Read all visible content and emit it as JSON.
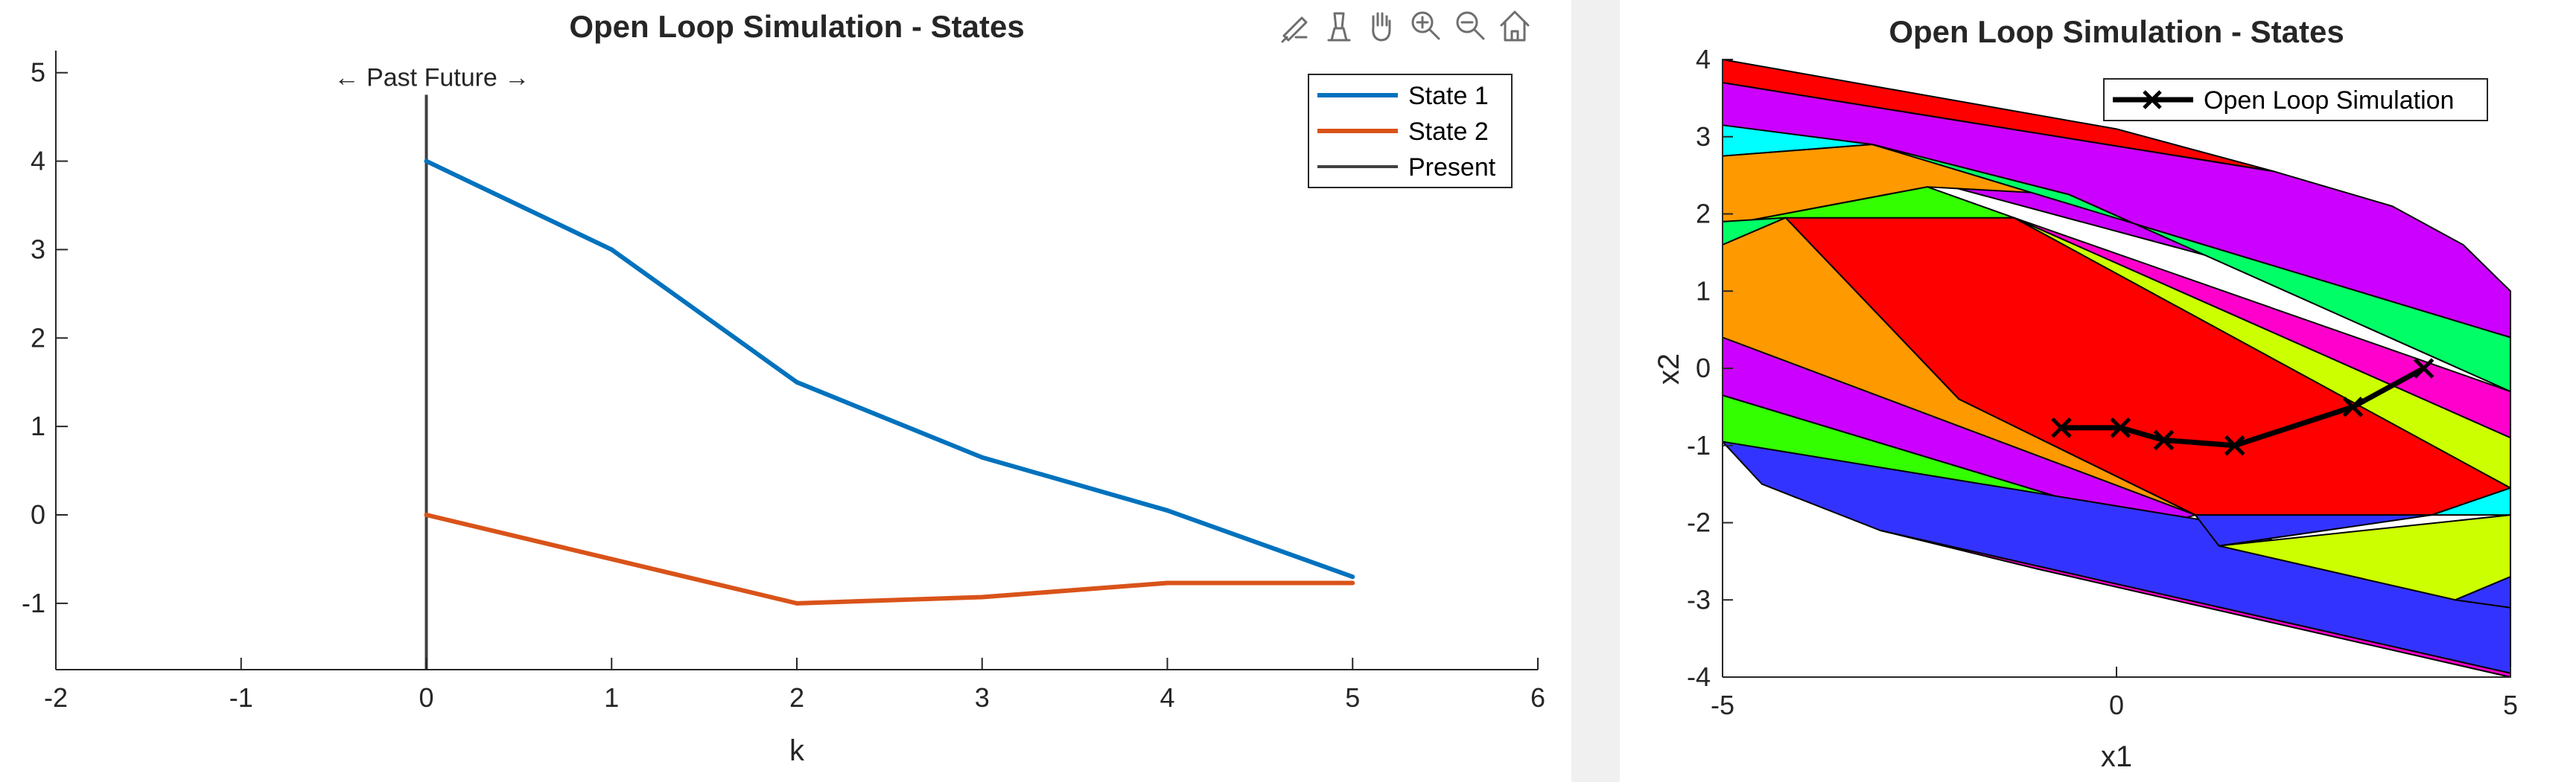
{
  "toolbar": {
    "icons": [
      "brush-icon",
      "datatip-icon",
      "pan-icon",
      "zoom-in-icon",
      "zoom-out-icon",
      "home-icon"
    ]
  },
  "chart_data": [
    {
      "type": "line",
      "title": "Open Loop Simulation - States",
      "xlabel": "k",
      "ylabel": "",
      "xlim": [
        -2,
        6
      ],
      "ylim": [
        -1.75,
        5.25
      ],
      "xticks": [
        "-2",
        "-1",
        "0",
        "1",
        "2",
        "3",
        "4",
        "5",
        "6"
      ],
      "yticks": [
        "-1",
        "0",
        "1",
        "2",
        "3",
        "4",
        "5"
      ],
      "x": [
        0,
        1,
        2,
        3,
        4,
        5
      ],
      "series": [
        {
          "name": "State 1",
          "color": "#0072BD",
          "values": [
            4,
            3,
            1.5,
            0.65,
            0.05,
            -0.7
          ]
        },
        {
          "name": "State 2",
          "color": "#D95319",
          "values": [
            0,
            -0.5,
            -1.0,
            -0.93,
            -0.77,
            -0.77
          ]
        }
      ],
      "present": {
        "name": "Present",
        "x": 0,
        "color": "#404040"
      },
      "annotation": "← Past Future →",
      "legend": "top-right",
      "grid": false
    },
    {
      "type": "line",
      "title": "Open Loop Simulation - States",
      "xlabel": "x1",
      "ylabel": "x2",
      "xlim": [
        -5,
        5
      ],
      "ylim": [
        -4,
        4
      ],
      "xticks": [
        "-5",
        "0",
        "5"
      ],
      "yticks": [
        "-4",
        "-3",
        "-2",
        "-1",
        "0",
        "1",
        "2",
        "3",
        "4"
      ],
      "series": [
        {
          "name": "Open Loop Simulation",
          "color": "#000000",
          "marker": "x",
          "x": [
            3.9,
            3.0,
            1.5,
            0.6,
            0.05,
            -0.7
          ],
          "y": [
            0.0,
            -0.5,
            -1.0,
            -0.93,
            -0.77,
            -0.77
          ]
        }
      ],
      "regions": [
        {
          "color": "#FF0000",
          "points": [
            [
              -5,
              4
            ],
            [
              0,
              3.1
            ],
            [
              2,
              2.55
            ],
            [
              -5,
              3.7
            ]
          ]
        },
        {
          "color": "#CC00FF",
          "points": [
            [
              -5,
              3.7
            ],
            [
              2,
              2.55
            ],
            [
              3.5,
              2.1
            ],
            [
              4.4,
              1.6
            ],
            [
              5,
              1.0
            ],
            [
              5,
              0.4
            ],
            [
              -5,
              3.15
            ]
          ]
        },
        {
          "color": "#00FFFF",
          "points": [
            [
              -5,
              3.15
            ],
            [
              -3.1,
              2.9
            ],
            [
              -5,
              2.75
            ]
          ]
        },
        {
          "color": "#FF9900",
          "points": [
            [
              -5,
              2.75
            ],
            [
              -3.1,
              2.9
            ],
            [
              -0.6,
              2.25
            ],
            [
              -2.4,
              2.35
            ],
            [
              -5,
              1.85
            ]
          ]
        },
        {
          "color": "#00FF66",
          "points": [
            [
              -3.1,
              2.9
            ],
            [
              5,
              0.4
            ],
            [
              5,
              -0.3
            ],
            [
              -0.6,
              2.25
            ]
          ]
        },
        {
          "color": "#33FF00",
          "points": [
            [
              -5,
              1.85
            ],
            [
              -2.4,
              2.35
            ],
            [
              -1.3,
              1.95
            ],
            [
              -5,
              1.9
            ]
          ]
        },
        {
          "color": "#00FF66",
          "points": [
            [
              -5,
              1.9
            ],
            [
              -4.2,
              1.95
            ],
            [
              -5,
              1.6
            ]
          ]
        },
        {
          "color": "#FF00CC",
          "points": [
            [
              -1.3,
              1.95
            ],
            [
              5,
              -0.3
            ],
            [
              5,
              -0.9
            ],
            [
              -1.4,
              1.95
            ]
          ]
        },
        {
          "color": "#FF0000",
          "points": [
            [
              -4.2,
              1.95
            ],
            [
              -1.3,
              1.95
            ],
            [
              5,
              -1.55
            ],
            [
              4,
              -1.9
            ],
            [
              1,
              -1.9
            ],
            [
              -2,
              -0.4
            ]
          ]
        },
        {
          "color": "#CCFF00",
          "points": [
            [
              -1.3,
              1.95
            ],
            [
              5,
              -0.9
            ],
            [
              5,
              -1.55
            ]
          ]
        },
        {
          "color": "#FF9900",
          "points": [
            [
              -5,
              1.6
            ],
            [
              -4.2,
              1.95
            ],
            [
              -2,
              -0.4
            ],
            [
              1,
              -1.9
            ],
            [
              -5,
              0.4
            ]
          ]
        },
        {
          "color": "#CC00FF",
          "points": [
            [
              -5,
              0.4
            ],
            [
              1,
              -1.9
            ],
            [
              0.5,
              -2.05
            ],
            [
              -5,
              -0.35
            ]
          ]
        },
        {
          "color": "#33FF00",
          "points": [
            [
              -5,
              -0.35
            ],
            [
              0.5,
              -2.05
            ],
            [
              4.3,
              -3.0
            ],
            [
              -5,
              -0.95
            ]
          ]
        },
        {
          "color": "#3333FF",
          "points": [
            [
              -5,
              -0.95
            ],
            [
              -4.5,
              -1.5
            ],
            [
              -3,
              -2.1
            ],
            [
              5,
              -3.95
            ],
            [
              5,
              -3.1
            ],
            [
              4.3,
              -3.0
            ],
            [
              1.3,
              -2.0
            ]
          ]
        },
        {
          "color": "#FF00CC",
          "points": [
            [
              -3,
              -2.1
            ],
            [
              5,
              -3.95
            ],
            [
              5,
              -4.0
            ],
            [
              -1,
              -2.6
            ]
          ]
        },
        {
          "color": "#00FFFF",
          "points": [
            [
              4,
              -1.9
            ],
            [
              5,
              -1.55
            ],
            [
              5,
              -1.9
            ]
          ]
        },
        {
          "color": "#CCFF00",
          "points": [
            [
              1.3,
              -2.3
            ],
            [
              5,
              -1.9
            ],
            [
              5,
              -2.7
            ],
            [
              4.3,
              -3.0
            ]
          ]
        },
        {
          "color": "#3333FF",
          "points": [
            [
              1,
              -1.9
            ],
            [
              4,
              -1.9
            ],
            [
              1.3,
              -2.3
            ]
          ]
        },
        {
          "color": "#3333FF",
          "points": [
            [
              4.3,
              -3.0
            ],
            [
              5,
              -2.7
            ],
            [
              5,
              -3.1
            ]
          ]
        }
      ],
      "legend": "top-right",
      "grid": false
    }
  ]
}
